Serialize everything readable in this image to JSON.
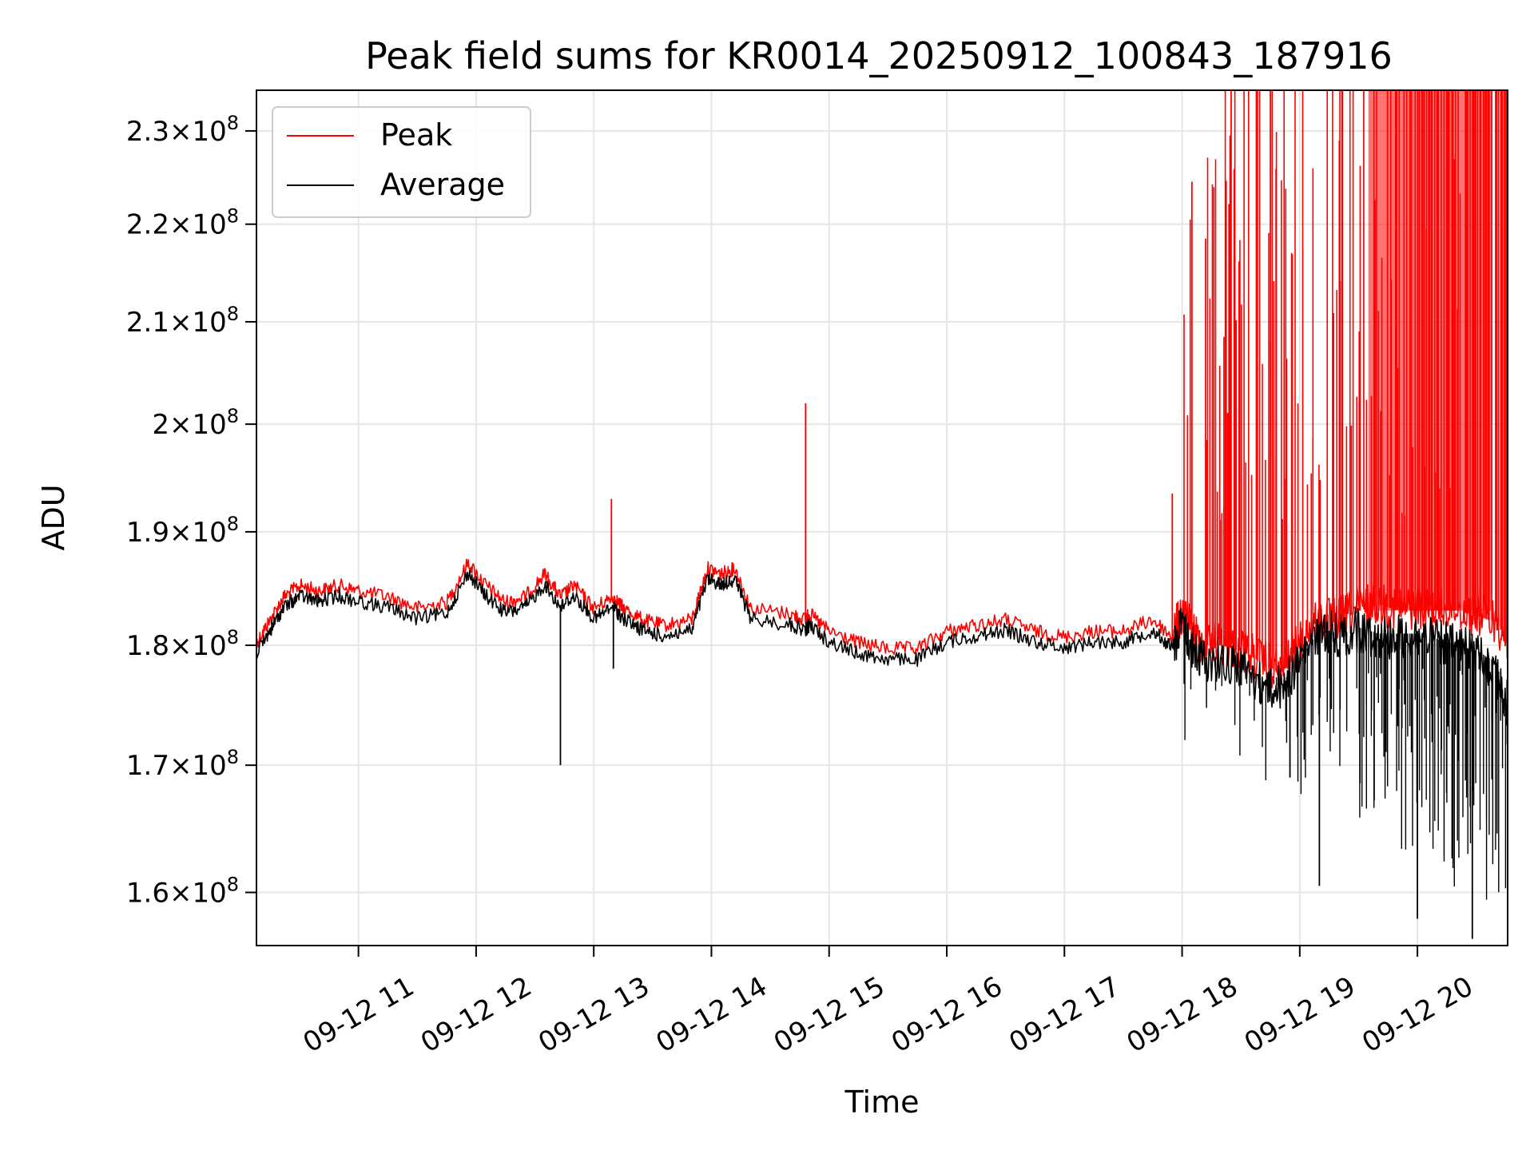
{
  "chart_data": {
    "type": "line",
    "title": "Peak field sums for KR0014_20250912_100843_187916",
    "xlabel": "Time",
    "ylabel": "ADU",
    "yscale": "log",
    "ylim": [
      156000000,
      234500000
    ],
    "xlim": [
      "2025-09-12 10:08",
      "2025-09-12 20:46"
    ],
    "grid": true,
    "legend": "top-left",
    "x_ticks": [
      {
        "value": "2025-09-12 11:00",
        "label": "09-12 11"
      },
      {
        "value": "2025-09-12 12:00",
        "label": "09-12 12"
      },
      {
        "value": "2025-09-12 13:00",
        "label": "09-12 13"
      },
      {
        "value": "2025-09-12 14:00",
        "label": "09-12 14"
      },
      {
        "value": "2025-09-12 15:00",
        "label": "09-12 15"
      },
      {
        "value": "2025-09-12 16:00",
        "label": "09-12 16"
      },
      {
        "value": "2025-09-12 17:00",
        "label": "09-12 17"
      },
      {
        "value": "2025-09-12 18:00",
        "label": "09-12 18"
      },
      {
        "value": "2025-09-12 19:00",
        "label": "09-12 19"
      },
      {
        "value": "2025-09-12 20:00",
        "label": "09-12 20"
      }
    ],
    "y_ticks": [
      {
        "value": 160000000,
        "mantissa": "1.6",
        "base": "10",
        "exp": "8"
      },
      {
        "value": 170000000,
        "mantissa": "1.7",
        "base": "10",
        "exp": "8"
      },
      {
        "value": 180000000,
        "mantissa": "1.8",
        "base": "10",
        "exp": "8"
      },
      {
        "value": 190000000,
        "mantissa": "1.9",
        "base": "10",
        "exp": "8"
      },
      {
        "value": 200000000,
        "mantissa": "2",
        "base": "10",
        "exp": "8"
      },
      {
        "value": 210000000,
        "mantissa": "2.1",
        "base": "10",
        "exp": "8"
      },
      {
        "value": 220000000,
        "mantissa": "2.2",
        "base": "10",
        "exp": "8"
      },
      {
        "value": 230000000,
        "mantissa": "2.3",
        "base": "10",
        "exp": "8"
      }
    ],
    "series": [
      {
        "name": "Peak",
        "color": "#ff0000",
        "x": [
          "2025-09-12 10:08",
          "2025-09-12 10:15",
          "2025-09-12 10:22",
          "2025-09-12 10:30",
          "2025-09-12 10:40",
          "2025-09-12 10:50",
          "2025-09-12 11:00",
          "2025-09-12 11:15",
          "2025-09-12 11:30",
          "2025-09-12 11:45",
          "2025-09-12 11:56",
          "2025-09-12 12:05",
          "2025-09-12 12:15",
          "2025-09-12 12:25",
          "2025-09-12 12:35",
          "2025-09-12 12:43",
          "2025-09-12 12:50",
          "2025-09-12 13:00",
          "2025-09-12 13:10",
          "2025-09-12 13:15",
          "2025-09-12 13:25",
          "2025-09-12 13:35",
          "2025-09-12 13:50",
          "2025-09-12 13:58",
          "2025-09-12 14:05",
          "2025-09-12 14:12",
          "2025-09-12 14:20",
          "2025-09-12 14:40",
          "2025-09-12 14:48",
          "2025-09-12 14:50",
          "2025-09-12 15:00",
          "2025-09-12 15:15",
          "2025-09-12 15:30",
          "2025-09-12 15:45",
          "2025-09-12 16:00",
          "2025-09-12 16:15",
          "2025-09-12 16:30",
          "2025-09-12 16:45",
          "2025-09-12 17:00",
          "2025-09-12 17:15",
          "2025-09-12 17:30",
          "2025-09-12 17:45",
          "2025-09-12 17:55",
          "2025-09-12 18:00",
          "2025-09-12 18:05",
          "2025-09-12 18:10",
          "2025-09-12 18:20",
          "2025-09-12 18:30",
          "2025-09-12 18:40",
          "2025-09-12 18:50",
          "2025-09-12 19:00",
          "2025-09-12 19:10",
          "2025-09-12 19:20",
          "2025-09-12 19:30",
          "2025-09-12 19:40",
          "2025-09-12 19:50",
          "2025-09-12 20:00",
          "2025-09-12 20:10",
          "2025-09-12 20:20",
          "2025-09-12 20:30",
          "2025-09-12 20:40",
          "2025-09-12 20:46"
        ],
        "values": [
          180000000,
          182000000,
          184000000,
          185000000,
          184500000,
          185000000,
          184500000,
          184000000,
          183000000,
          183500000,
          187000000,
          185000000,
          183500000,
          184000000,
          186000000,
          184000000,
          185000000,
          183000000,
          184000000,
          183000000,
          182000000,
          181500000,
          182000000,
          186500000,
          186000000,
          186500000,
          183000000,
          182500000,
          182000000,
          182500000,
          181000000,
          180000000,
          179500000,
          179500000,
          181000000,
          181500000,
          182000000,
          181000000,
          180500000,
          181000000,
          181000000,
          182000000,
          180500000,
          182500000,
          181000000,
          180000000,
          180000000,
          179500000,
          178500000,
          177500000,
          180000000,
          182000000,
          182000000,
          183000000,
          183500000,
          183000000,
          183000000,
          183000000,
          183000000,
          182500000,
          182000000,
          180000000
        ]
      },
      {
        "name": "Average",
        "color": "#000000",
        "x": [
          "2025-09-12 10:08",
          "2025-09-12 10:15",
          "2025-09-12 10:22",
          "2025-09-12 10:30",
          "2025-09-12 10:40",
          "2025-09-12 10:50",
          "2025-09-12 11:00",
          "2025-09-12 11:15",
          "2025-09-12 11:30",
          "2025-09-12 11:45",
          "2025-09-12 11:56",
          "2025-09-12 12:05",
          "2025-09-12 12:15",
          "2025-09-12 12:25",
          "2025-09-12 12:35",
          "2025-09-12 12:43",
          "2025-09-12 12:50",
          "2025-09-12 13:00",
          "2025-09-12 13:10",
          "2025-09-12 13:15",
          "2025-09-12 13:25",
          "2025-09-12 13:35",
          "2025-09-12 13:50",
          "2025-09-12 13:58",
          "2025-09-12 14:05",
          "2025-09-12 14:12",
          "2025-09-12 14:20",
          "2025-09-12 14:40",
          "2025-09-12 14:48",
          "2025-09-12 14:50",
          "2025-09-12 15:00",
          "2025-09-12 15:15",
          "2025-09-12 15:30",
          "2025-09-12 15:45",
          "2025-09-12 16:00",
          "2025-09-12 16:15",
          "2025-09-12 16:30",
          "2025-09-12 16:45",
          "2025-09-12 17:00",
          "2025-09-12 17:15",
          "2025-09-12 17:30",
          "2025-09-12 17:45",
          "2025-09-12 17:55",
          "2025-09-12 18:00",
          "2025-09-12 18:05",
          "2025-09-12 18:10",
          "2025-09-12 18:20",
          "2025-09-12 18:30",
          "2025-09-12 18:40",
          "2025-09-12 18:50",
          "2025-09-12 19:00",
          "2025-09-12 19:10",
          "2025-09-12 19:20",
          "2025-09-12 19:30",
          "2025-09-12 19:40",
          "2025-09-12 19:50",
          "2025-09-12 20:00",
          "2025-09-12 20:10",
          "2025-09-12 20:20",
          "2025-09-12 20:30",
          "2025-09-12 20:40",
          "2025-09-12 20:46"
        ],
        "values": [
          179500000,
          181500000,
          183500000,
          184500000,
          184000000,
          184500000,
          184000000,
          183500000,
          182500000,
          183000000,
          186500000,
          184500000,
          183000000,
          183500000,
          185500000,
          183500000,
          184500000,
          182500000,
          183500000,
          182500000,
          181500000,
          181000000,
          181500000,
          186000000,
          185500000,
          186000000,
          182500000,
          182000000,
          181500000,
          182000000,
          180500000,
          179500000,
          179000000,
          179000000,
          180500000,
          181000000,
          181500000,
          180500000,
          180000000,
          180500000,
          180500000,
          181500000,
          180000000,
          182000000,
          180000000,
          179000000,
          179000000,
          178500000,
          177000000,
          176500000,
          179000000,
          181500000,
          181000000,
          181500000,
          181000000,
          181000000,
          181000000,
          180500000,
          180000000,
          179500000,
          178500000,
          174000000
        ]
      }
    ],
    "spikes": [
      {
        "series": "Peak",
        "x": "2025-09-12 13:09",
        "value": 193000000
      },
      {
        "series": "Peak",
        "x": "2025-09-12 14:48",
        "value": 202000000
      },
      {
        "series": "Peak",
        "x": "2025-09-12 17:55",
        "value": 193500000
      },
      {
        "series": "Peak",
        "x": "2025-09-12 18:05",
        "value": 224500000
      },
      {
        "series": "Peak",
        "x": "2025-09-12 18:12",
        "value": 218500000
      },
      {
        "series": "Peak",
        "x": "2025-09-12 18:25",
        "value": 234500000
      },
      {
        "series": "Peak",
        "x": "2025-09-12 18:45",
        "value": 234500000
      },
      {
        "series": "Average",
        "x": "2025-09-12 12:43",
        "value": 170000000
      },
      {
        "series": "Average",
        "x": "2025-09-12 13:10",
        "value": 178000000
      },
      {
        "series": "Average",
        "x": "2025-09-12 18:55",
        "value": 169000000
      },
      {
        "series": "Average",
        "x": "2025-09-12 19:10",
        "value": 160500000
      },
      {
        "series": "Average",
        "x": "2025-09-12 20:00",
        "value": 158000000
      },
      {
        "series": "Average",
        "x": "2025-09-12 20:28",
        "value": 156500000
      }
    ]
  }
}
